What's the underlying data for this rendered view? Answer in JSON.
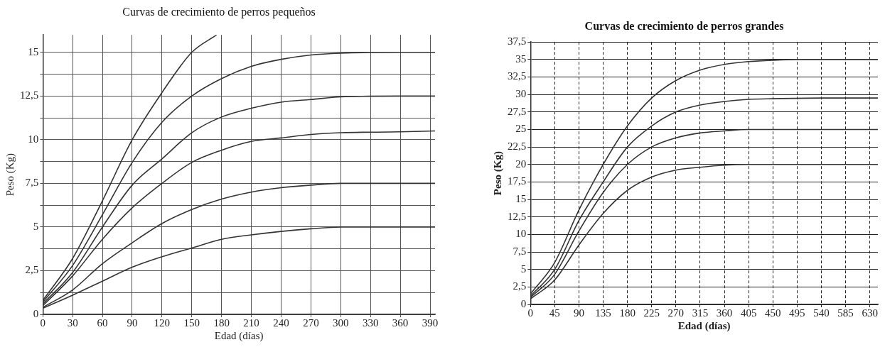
{
  "chart_data": [
    {
      "type": "line",
      "title": "Curvas de crecimiento de perros pequeños",
      "xlabel": "Edad (días)",
      "ylabel": "Peso (Kg)",
      "xlim": [
        0,
        395
      ],
      "ylim": [
        0,
        16
      ],
      "xticks": [
        0,
        30,
        60,
        90,
        120,
        150,
        180,
        210,
        240,
        270,
        300,
        330,
        360,
        390
      ],
      "yticks": [
        0,
        {
          "value": 1.25,
          "label": null
        },
        {
          "value": 2.5,
          "label": "2,5"
        },
        {
          "value": 3.75,
          "label": null
        },
        5,
        {
          "value": 6.25,
          "label": null
        },
        {
          "value": 7.5,
          "label": "7,5"
        },
        {
          "value": 8.75,
          "label": null
        },
        10,
        {
          "value": 11.25,
          "label": null
        },
        {
          "value": 12.5,
          "label": "12,5"
        },
        {
          "value": 13.75,
          "label": null
        },
        15
      ],
      "grid": true,
      "legend": false,
      "marker": "none",
      "line_style": "solid",
      "series": [
        {
          "color": "#333333",
          "x": [
            0,
            30,
            60,
            90,
            120,
            150,
            175
          ],
          "values": [
            0.8,
            3.2,
            6.5,
            10,
            12.7,
            15,
            16
          ]
        },
        {
          "color": "#333333",
          "x": [
            0,
            30,
            60,
            90,
            120,
            150,
            180,
            210,
            240,
            270,
            300,
            360,
            395
          ],
          "values": [
            0.7,
            2.8,
            5.7,
            8.7,
            11,
            12.5,
            13.5,
            14.2,
            14.6,
            14.85,
            14.95,
            15,
            15
          ]
        },
        {
          "color": "#333333",
          "x": [
            0,
            30,
            60,
            90,
            120,
            150,
            180,
            210,
            240,
            270,
            300,
            360,
            395
          ],
          "values": [
            0.6,
            2.4,
            5,
            7.4,
            8.9,
            10.4,
            11.3,
            11.8,
            12.15,
            12.3,
            12.45,
            12.5,
            12.5
          ]
        },
        {
          "color": "#333333",
          "x": [
            0,
            30,
            60,
            90,
            120,
            150,
            180,
            210,
            240,
            270,
            300,
            360,
            395
          ],
          "values": [
            0.5,
            2.2,
            4.3,
            6.1,
            7.5,
            8.7,
            9.4,
            9.9,
            10.1,
            10.3,
            10.4,
            10.45,
            10.5
          ]
        },
        {
          "color": "#333333",
          "x": [
            0,
            30,
            60,
            90,
            120,
            150,
            180,
            210,
            240,
            270,
            300,
            395
          ],
          "values": [
            0.4,
            1.4,
            2.9,
            4.1,
            5.2,
            6,
            6.6,
            7,
            7.25,
            7.4,
            7.5,
            7.5
          ]
        },
        {
          "color": "#333333",
          "x": [
            0,
            30,
            60,
            90,
            120,
            150,
            180,
            210,
            240,
            270,
            300,
            395
          ],
          "values": [
            0.35,
            1.1,
            1.9,
            2.7,
            3.3,
            3.8,
            4.3,
            4.55,
            4.75,
            4.9,
            5,
            5
          ]
        }
      ]
    },
    {
      "type": "line",
      "title": "Curvas de crecimiento de perros grandes",
      "xlabel": "Edad (días)",
      "ylabel": "Peso (Kg)",
      "xlim": [
        0,
        645
      ],
      "ylim": [
        0,
        37.5
      ],
      "xticks": [
        0,
        45,
        90,
        135,
        180,
        225,
        270,
        315,
        360,
        405,
        450,
        495,
        540,
        585,
        630
      ],
      "yticks": [
        0,
        {
          "value": 2.5,
          "label": "2,5"
        },
        5,
        {
          "value": 7.5,
          "label": "7,5"
        },
        10,
        {
          "value": 12.5,
          "label": "12,5"
        },
        15,
        {
          "value": 17.5,
          "label": "17,5"
        },
        20,
        {
          "value": 22.5,
          "label": "22,5"
        },
        25,
        {
          "value": 27.5,
          "label": "27,5"
        },
        30,
        {
          "value": 32.5,
          "label": "32,5"
        },
        35,
        {
          "value": 37.5,
          "label": "37,5"
        }
      ],
      "grid": true,
      "legend": false,
      "marker": "none",
      "line_style": "solid",
      "series": [
        {
          "color": "#333333",
          "x": [
            0,
            45,
            90,
            135,
            180,
            225,
            270,
            315,
            360,
            405,
            450,
            495,
            645
          ],
          "values": [
            1.5,
            6,
            13.5,
            20,
            25.5,
            29.5,
            32,
            33.5,
            34.3,
            34.7,
            34.9,
            35,
            35
          ]
        },
        {
          "color": "#333333",
          "x": [
            0,
            45,
            90,
            135,
            180,
            225,
            270,
            315,
            360,
            405,
            450,
            540,
            645
          ],
          "values": [
            1.2,
            5,
            12,
            17.5,
            22.5,
            25.5,
            27.5,
            28.5,
            29,
            29.3,
            29.4,
            29.5,
            29.5
          ]
        },
        {
          "color": "#333333",
          "x": [
            0,
            45,
            90,
            135,
            180,
            225,
            270,
            315,
            360,
            405,
            645
          ],
          "values": [
            1,
            4.3,
            10.5,
            16,
            20,
            22.5,
            23.8,
            24.5,
            24.8,
            25,
            25
          ]
        },
        {
          "color": "#333333",
          "x": [
            0,
            45,
            90,
            135,
            180,
            225,
            270,
            315,
            360,
            405,
            645
          ],
          "values": [
            0.8,
            3.5,
            8.5,
            13,
            16.3,
            18.2,
            19.2,
            19.6,
            19.9,
            20,
            20
          ]
        }
      ]
    }
  ]
}
